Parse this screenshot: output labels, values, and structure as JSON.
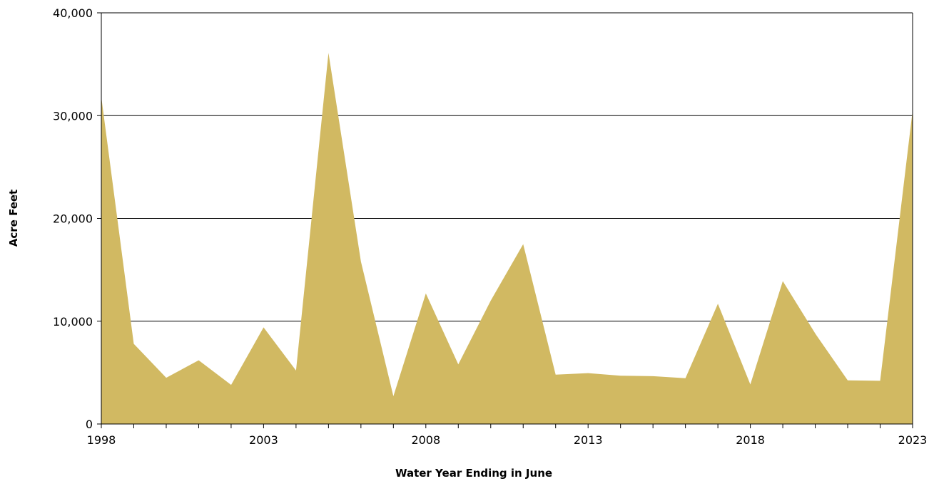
{
  "chart_data": {
    "type": "area",
    "title": "",
    "xlabel": "Water Year Ending in June",
    "ylabel": "Acre Feet",
    "xlim": [
      1998,
      2023
    ],
    "ylim": [
      0,
      40000
    ],
    "grid": true,
    "fill_color": "#d1b962",
    "x_tick_labels": [
      "1998",
      "2003",
      "2008",
      "2013",
      "2018",
      "2023"
    ],
    "y_tick_labels": [
      "0",
      "10,000",
      "20,000",
      "30,000",
      "40,000"
    ],
    "x": [
      1998,
      1999,
      2000,
      2001,
      2002,
      2003,
      2004,
      2005,
      2006,
      2007,
      2008,
      2009,
      2010,
      2011,
      2012,
      2013,
      2014,
      2015,
      2016,
      2017,
      2018,
      2019,
      2020,
      2021,
      2022,
      2023
    ],
    "values": [
      31800,
      7800,
      4500,
      6200,
      3800,
      9400,
      5200,
      36100,
      15800,
      2700,
      12700,
      5800,
      12000,
      17500,
      4800,
      4950,
      4700,
      4650,
      4450,
      11700,
      3850,
      13900,
      8800,
      4250,
      4200,
      30500
    ]
  }
}
